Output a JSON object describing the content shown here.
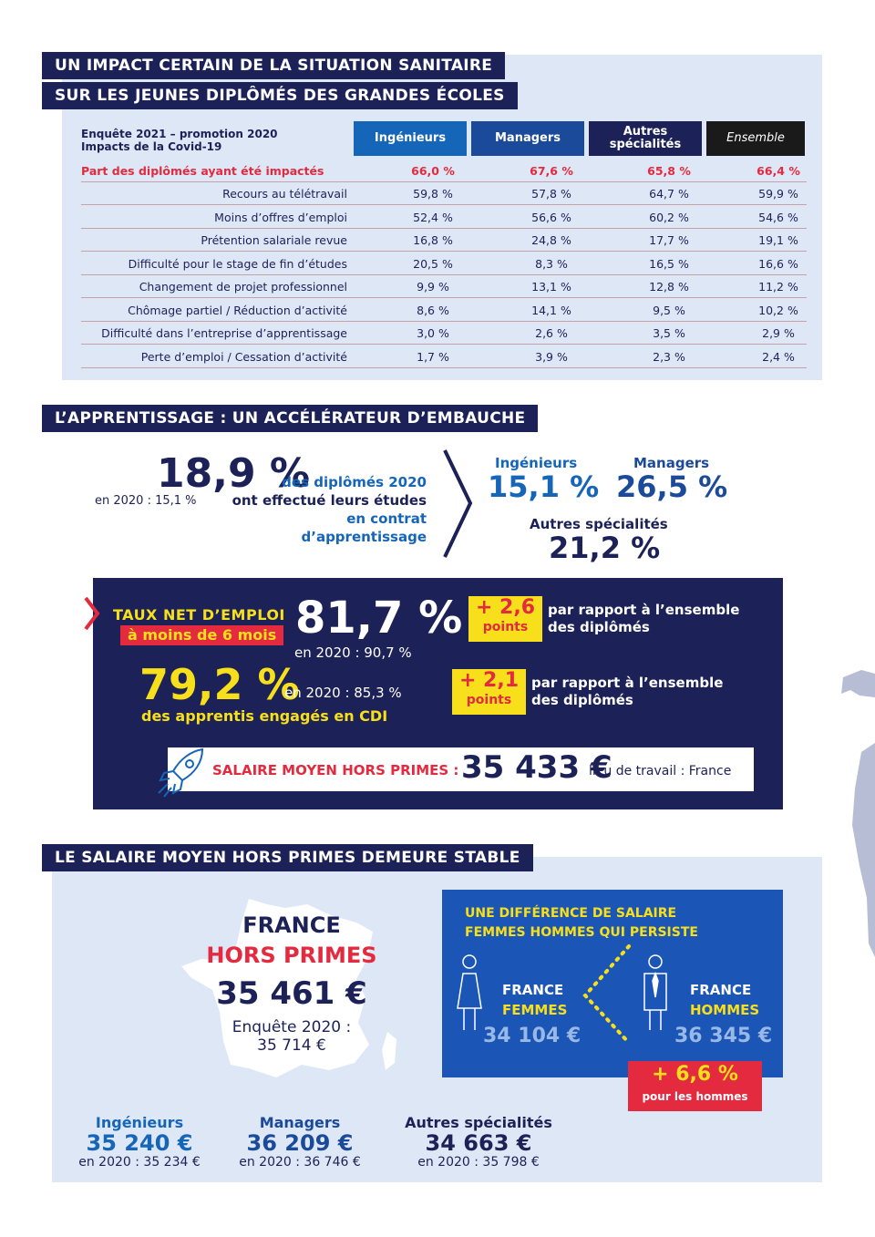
{
  "section1": {
    "banner_line1": "UN IMPACT CERTAIN DE LA SITUATION SANITAIRE",
    "banner_line2": "SUR LES JEUNES DIPLÔMÉS DES GRANDES ÉCOLES",
    "table_caption_line1": "Enquête 2021 – promotion 2020",
    "table_caption_line2": "Impacts de la Covid-19",
    "columns": [
      "Ingénieurs",
      "Managers",
      "Autres spécialités",
      "Ensemble"
    ],
    "column_colors": [
      "#1565b8",
      "#1c4a9a",
      "#1c2157",
      "#1a1a1a"
    ],
    "highlight_row": {
      "label": "Part des diplômés ayant été impactés",
      "values": [
        "66,0 %",
        "67,6 %",
        "65,8 %",
        "66,4 %"
      ]
    },
    "rows": [
      {
        "label": "Recours au télétravail",
        "values": [
          "59,8 %",
          "57,8 %",
          "64,7 %",
          "59,9 %"
        ]
      },
      {
        "label": "Moins d’offres d’emploi",
        "values": [
          "52,4 %",
          "56,6 %",
          "60,2 %",
          "54,6 %"
        ]
      },
      {
        "label": "Prétention salariale revue",
        "values": [
          "16,8 %",
          "24,8 %",
          "17,7 %",
          "19,1 %"
        ]
      },
      {
        "label": "Difficulté pour le stage de fin d’études",
        "values": [
          "20,5 %",
          "8,3 %",
          "16,5 %",
          "16,6 %"
        ]
      },
      {
        "label": "Changement de projet professionnel",
        "values": [
          "9,9 %",
          "13,1 %",
          "12,8 %",
          "11,2 %"
        ]
      },
      {
        "label": "Chômage partiel / Réduction d’activité",
        "values": [
          "8,6 %",
          "14,1 %",
          "9,5 %",
          "10,2 %"
        ]
      },
      {
        "label": "Difficulté dans l’entreprise d’apprentissage",
        "values": [
          "3,0 %",
          "2,6 %",
          "3,5 %",
          "2,9 %"
        ]
      },
      {
        "label": "Perte d’emploi / Cessation d’activité",
        "values": [
          "1,7 %",
          "3,9 %",
          "2,3 %",
          "2,4 %"
        ]
      }
    ]
  },
  "section2": {
    "banner": "L’APPRENTISSAGE : UN ACCÉLÉRATEUR D’EMBAUCHE",
    "main_value": "18,9 %",
    "main_prev": "en 2020 : 15,1 %",
    "main_text_line1": "des diplômés 2020",
    "main_text_line2": "ont effectué leurs études",
    "main_text_line3": "en contrat d’apprentissage",
    "ing_label": "Ingénieurs",
    "ing_value": "15,1 %",
    "man_label": "Managers",
    "man_value": "26,5 %",
    "autres_label": "Autres spécialités",
    "autres_value": "21,2 %",
    "taux_label": "TAUX NET D’EMPLOI",
    "taux_sub": "à moins de 6 mois",
    "taux_value": "81,7 %",
    "taux_prev": "en 2020 : 90,7 %",
    "delta1_value": "+ 2,6",
    "delta1_unit": "points",
    "delta1_text_line1": "par rapport à l’ensemble",
    "delta1_text_line2": "des diplômés",
    "cdi_value": "79,2 %",
    "cdi_prev": "en 2020 : 85,3 %",
    "cdi_text": "des apprentis engagés en CDI",
    "delta2_value": "+ 2,1",
    "delta2_unit": "points",
    "delta2_text_line1": "par rapport à l’ensemble",
    "delta2_text_line2": "des diplômés",
    "salary_label": "SALAIRE MOYEN HORS PRIMES :",
    "salary_value": "35 433 €",
    "salary_note": "lieu de travail : France"
  },
  "section3": {
    "banner": "LE SALAIRE MOYEN HORS PRIMES DEMEURE STABLE",
    "france_label": "FRANCE",
    "hors_primes": "HORS PRIMES",
    "france_value": "35 461 €",
    "enquete_line1": "Enquête 2020 :",
    "enquete_line2": "35 714 €",
    "ing_label": "Ingénieurs",
    "ing_value": "35 240 €",
    "ing_prev": "en 2020 : 35 234 €",
    "man_label": "Managers",
    "man_value": "36 209 €",
    "man_prev": "en 2020 : 36 746 €",
    "autres_label": "Autres spécialités",
    "autres_value": "34 663 €",
    "autres_prev": "en 2020 : 35 798 €",
    "gap_title_line1": "UNE DIFFÉRENCE DE SALAIRE",
    "gap_title_line2": "FEMMES HOMMES QUI PERSISTE",
    "femmes_line1": "FRANCE",
    "femmes_line2": "FEMMES",
    "femmes_value": "34 104 €",
    "hommes_line1": "FRANCE",
    "hommes_line2": "HOMMES",
    "hommes_value": "36 345 €",
    "gap_value": "+ 6,6 %",
    "gap_text": "pour les hommes"
  }
}
